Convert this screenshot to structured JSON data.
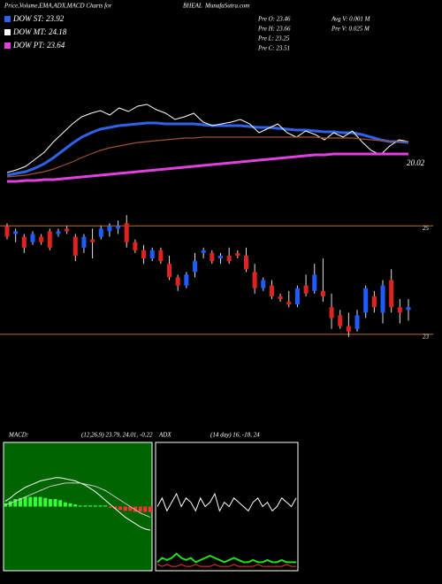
{
  "header": {
    "title": "Price,Volume,EMA,ADX,MACD Charts for",
    "symbol": "BHEAL",
    "site": "MunafaSutra.com"
  },
  "stats": [
    "Pre O: 23.46",
    "Pre H: 23.66",
    "Pre L: 23.25",
    "Pre C: 23.51",
    "Avg V: 0.001 M",
    "Pre V: 0.025 M"
  ],
  "chart_data": [
    {
      "type": "line",
      "annotation": "20.02",
      "ylim": [
        20,
        27.5
      ],
      "series": [
        {
          "name": "DOW ST: 23.92",
          "color": "#2f62e8",
          "values": [
            20.85,
            20.95,
            21.05,
            21.25,
            21.5,
            21.85,
            22.25,
            22.65,
            23.0,
            23.25,
            23.45,
            23.55,
            23.65,
            23.7,
            23.75,
            23.8,
            23.8,
            23.75,
            23.75,
            23.75,
            23.75,
            23.7,
            23.65,
            23.65,
            23.65,
            23.65,
            23.6,
            23.55,
            23.55,
            23.5,
            23.45,
            23.4,
            23.4,
            23.35,
            23.3,
            23.3,
            23.25,
            23.25,
            23.15,
            23.0,
            22.85,
            22.75,
            22.75,
            22.7
          ]
        },
        {
          "name": "DOW MT: 24.18",
          "color": "#ffffff",
          "values": [
            21.0,
            21.15,
            21.35,
            21.75,
            22.15,
            22.75,
            23.25,
            23.75,
            24.15,
            24.35,
            24.5,
            24.25,
            24.65,
            24.45,
            24.75,
            24.85,
            24.55,
            24.35,
            24.0,
            24.15,
            24.35,
            23.85,
            23.65,
            23.75,
            23.85,
            24.0,
            23.75,
            23.25,
            23.5,
            23.75,
            23.25,
            23.0,
            23.35,
            23.15,
            22.85,
            23.25,
            23.0,
            23.35,
            22.75,
            22.25,
            22.0,
            22.5,
            22.85,
            22.75
          ]
        },
        {
          "name": "DOW PT: 23.64",
          "color": "#e040e0",
          "values": [
            20.5,
            20.5,
            20.55,
            20.55,
            20.6,
            20.6,
            20.65,
            20.7,
            20.75,
            20.8,
            20.85,
            20.9,
            20.95,
            21.0,
            21.05,
            21.1,
            21.15,
            21.2,
            21.25,
            21.3,
            21.35,
            21.4,
            21.45,
            21.5,
            21.55,
            21.6,
            21.65,
            21.7,
            21.75,
            21.8,
            21.85,
            21.9,
            21.95,
            22.0,
            22.0,
            22.05,
            22.05,
            22.05,
            22.05,
            22.05,
            22.05,
            22.05,
            22.05,
            22.05
          ]
        },
        {
          "color": "#a0522d",
          "values": [
            20.75,
            20.8,
            20.85,
            20.95,
            21.05,
            21.2,
            21.4,
            21.6,
            21.85,
            22.05,
            22.25,
            22.4,
            22.5,
            22.6,
            22.7,
            22.75,
            22.8,
            22.85,
            22.9,
            22.95,
            22.95,
            23.0,
            23.0,
            23.0,
            23.0,
            23.0,
            23.0,
            23.0,
            23.0,
            23.0,
            23.0,
            23.0,
            23.0,
            23.0,
            22.95,
            22.95,
            22.95,
            22.95,
            22.9,
            22.85,
            22.8,
            22.75,
            22.75,
            22.75
          ]
        }
      ]
    },
    {
      "type": "candlestick",
      "ylim": [
        22.8,
        25.25
      ],
      "yticks": [
        25,
        23
      ],
      "up_color": "#1e5cff",
      "down_color": "#e0231e",
      "grid_color": "#b46e28",
      "candles": [
        [
          25.0,
          25.05,
          24.75,
          24.8
        ],
        [
          24.85,
          24.95,
          24.7,
          24.9
        ],
        [
          24.8,
          24.85,
          24.5,
          24.6
        ],
        [
          24.7,
          24.9,
          24.65,
          24.85
        ],
        [
          24.8,
          24.85,
          24.65,
          24.7
        ],
        [
          24.9,
          24.95,
          24.55,
          24.6
        ],
        [
          24.85,
          24.95,
          24.8,
          24.9
        ],
        [
          24.95,
          25.0,
          24.85,
          24.9
        ],
        [
          24.8,
          24.85,
          24.35,
          24.45
        ],
        [
          24.6,
          24.85,
          24.5,
          24.8
        ],
        [
          24.75,
          24.95,
          24.4,
          24.7
        ],
        [
          24.8,
          25.0,
          24.75,
          24.95
        ],
        [
          24.9,
          25.05,
          24.8,
          25.0
        ],
        [
          24.95,
          25.1,
          24.85,
          25.0
        ],
        [
          25.05,
          25.2,
          24.6,
          24.7
        ],
        [
          24.7,
          24.75,
          24.5,
          24.55
        ],
        [
          24.55,
          24.65,
          24.3,
          24.4
        ],
        [
          24.4,
          24.6,
          24.35,
          24.55
        ],
        [
          24.55,
          24.6,
          24.3,
          24.35
        ],
        [
          24.3,
          24.45,
          24.0,
          24.05
        ],
        [
          24.05,
          24.1,
          23.8,
          23.9
        ],
        [
          23.9,
          24.15,
          23.85,
          24.1
        ],
        [
          24.15,
          24.5,
          24.05,
          24.35
        ],
        [
          24.5,
          24.6,
          24.4,
          24.55
        ],
        [
          24.5,
          24.55,
          24.3,
          24.35
        ],
        [
          24.4,
          24.5,
          24.3,
          24.45
        ],
        [
          24.45,
          24.6,
          24.3,
          24.35
        ],
        [
          24.5,
          24.55,
          24.4,
          24.45
        ],
        [
          24.45,
          24.6,
          24.15,
          24.2
        ],
        [
          24.15,
          24.3,
          23.75,
          23.85
        ],
        [
          23.85,
          24.05,
          23.8,
          24.0
        ],
        [
          23.9,
          24.0,
          23.65,
          23.7
        ],
        [
          23.7,
          23.75,
          23.6,
          23.65
        ],
        [
          23.6,
          23.8,
          23.5,
          23.55
        ],
        [
          23.55,
          23.9,
          23.5,
          23.85
        ],
        [
          23.9,
          24.1,
          23.7,
          23.75
        ],
        [
          23.8,
          24.3,
          23.75,
          24.1
        ],
        [
          23.8,
          24.4,
          23.6,
          23.7
        ],
        [
          23.5,
          23.75,
          23.1,
          23.3
        ],
        [
          23.35,
          23.45,
          23.1,
          23.15
        ],
        [
          23.15,
          23.4,
          22.95,
          23.05
        ],
        [
          23.1,
          23.45,
          23.05,
          23.35
        ],
        [
          23.4,
          23.9,
          23.3,
          23.85
        ],
        [
          23.7,
          23.8,
          23.4,
          23.5
        ],
        [
          23.4,
          24.0,
          23.2,
          23.9
        ],
        [
          24.0,
          24.2,
          23.4,
          23.5
        ],
        [
          23.5,
          23.65,
          23.2,
          23.4
        ],
        [
          23.45,
          23.65,
          23.25,
          23.5
        ]
      ]
    },
    {
      "type": "macd",
      "title": "MACD:",
      "subtitle": "(12,26,9) 23.79, 24.01, -0.22",
      "ylim": [
        -0.6,
        0.6
      ],
      "background": "#006400",
      "series": [
        {
          "color": "#ffffff",
          "values": [
            0.05,
            0.08,
            0.12,
            0.15,
            0.18,
            0.2,
            0.22,
            0.24,
            0.25,
            0.26,
            0.27,
            0.27,
            0.26,
            0.25,
            0.24,
            0.22,
            0.2,
            0.17,
            0.14,
            0.1,
            0.06,
            0.02,
            -0.02,
            -0.06,
            -0.1,
            -0.13,
            -0.16,
            -0.19,
            -0.21,
            -0.22
          ]
        },
        {
          "color": "#cccccc",
          "values": [
            0.02,
            0.03,
            0.05,
            0.07,
            0.09,
            0.11,
            0.13,
            0.15,
            0.17,
            0.19,
            0.2,
            0.21,
            0.22,
            0.22,
            0.22,
            0.22,
            0.21,
            0.2,
            0.19,
            0.17,
            0.15,
            0.12,
            0.09,
            0.06,
            0.03,
            0.0,
            -0.03,
            -0.06,
            -0.08,
            -0.1
          ]
        }
      ],
      "histogram": {
        "up_color": "#33ff33",
        "down_color": "#ff3333",
        "values": [
          0.03,
          0.05,
          0.07,
          0.08,
          0.09,
          0.09,
          0.09,
          0.09,
          0.08,
          0.07,
          0.07,
          0.06,
          0.04,
          0.03,
          0.02,
          0.01,
          0.01,
          0.01,
          0.01,
          0.01,
          0.01,
          -0.01,
          -0.02,
          -0.03,
          -0.04,
          -0.04,
          -0.05,
          -0.05,
          -0.05,
          -0.05
        ]
      }
    },
    {
      "type": "line",
      "title": "ADX",
      "subtitle": "(14 day) 16, -18, 24",
      "ylim": [
        0,
        30
      ],
      "background": "#000000",
      "series": [
        {
          "color": "#ffffff",
          "values": [
            15,
            17,
            14,
            16,
            18,
            15,
            17,
            16,
            14,
            17,
            15,
            16,
            18,
            14,
            16,
            15,
            17,
            16,
            15,
            14,
            16,
            17,
            15,
            16,
            14,
            15,
            17,
            16,
            15,
            17
          ]
        },
        {
          "color": "#22dd22",
          "values": [
            2,
            3,
            2.5,
            3,
            4,
            3,
            2.5,
            3,
            2,
            2.5,
            3,
            3.5,
            3,
            2.5,
            2,
            2.5,
            3,
            2.5,
            2,
            2,
            2.5,
            2,
            2,
            2.5,
            2,
            2,
            2.5,
            2,
            2,
            2
          ]
        },
        {
          "color": "#ff3333",
          "values": [
            1.5,
            1,
            1.5,
            1,
            1,
            1.5,
            1,
            1,
            1.5,
            1,
            1,
            1,
            1.5,
            1,
            1,
            1,
            1.5,
            1,
            1,
            1,
            1,
            1.5,
            1,
            1,
            1,
            1,
            1,
            1.5,
            1,
            1
          ]
        }
      ]
    }
  ]
}
